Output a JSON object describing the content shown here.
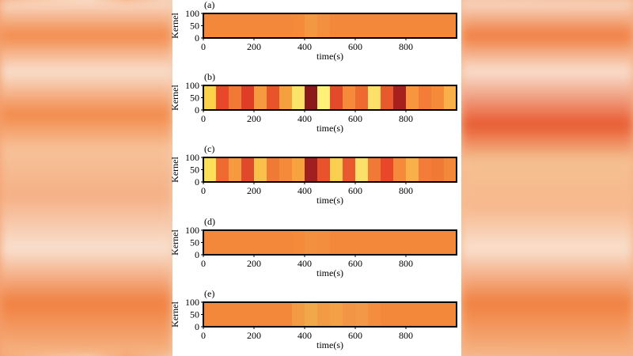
{
  "chart_data": [
    {
      "type": "heatmap",
      "title": "(a)",
      "xlabel": "time(s)",
      "ylabel": "Kernel",
      "xlim": [
        0,
        1000
      ],
      "ylim": [
        0,
        100
      ],
      "xticks": [
        0,
        200,
        400,
        600,
        800
      ],
      "yticks": [
        0,
        50,
        100
      ],
      "bins": [
        0,
        50,
        100,
        150,
        200,
        250,
        300,
        350,
        400,
        450,
        500,
        550,
        600,
        650,
        700,
        750,
        800,
        850,
        900,
        950,
        1000
      ],
      "colors": [
        "#f4883a",
        "#f4883a",
        "#f4883a",
        "#f4883a",
        "#f4883a",
        "#f4883a",
        "#f4883a",
        "#f48a3a",
        "#f29842",
        "#f29040",
        "#f4883a",
        "#f4883a",
        "#f4883a",
        "#f4883a",
        "#f4883a",
        "#f4883a",
        "#f4883a",
        "#f4883a",
        "#f4883a",
        "#f4883a"
      ]
    },
    {
      "type": "heatmap",
      "title": "(b)",
      "xlabel": "time(s)",
      "ylabel": "Kernel",
      "xlim": [
        0,
        1000
      ],
      "ylim": [
        0,
        100
      ],
      "xticks": [
        0,
        200,
        400,
        600,
        800
      ],
      "yticks": [
        0,
        50,
        100
      ],
      "bins": [
        0,
        50,
        100,
        150,
        200,
        250,
        300,
        350,
        400,
        450,
        500,
        550,
        600,
        650,
        700,
        750,
        800,
        850,
        900,
        950,
        1000
      ],
      "colors": [
        "#fbd24a",
        "#e8472a",
        "#f07a35",
        "#e03d28",
        "#f59a3e",
        "#e8532c",
        "#f4a03f",
        "#fbe36a",
        "#8a1a1a",
        "#fff07a",
        "#e24a2b",
        "#f48a3a",
        "#ee6a30",
        "#fde06a",
        "#e85a2e",
        "#a8201e",
        "#f7963d",
        "#f27c38",
        "#f48a3a",
        "#f9b04a"
      ]
    },
    {
      "type": "heatmap",
      "title": "(c)",
      "xlabel": "time(s)",
      "ylabel": "Kernel",
      "xlim": [
        0,
        1000
      ],
      "ylim": [
        0,
        100
      ],
      "xticks": [
        0,
        200,
        400,
        600,
        800
      ],
      "yticks": [
        0,
        50,
        100
      ],
      "bins": [
        0,
        50,
        100,
        150,
        200,
        250,
        300,
        350,
        400,
        450,
        500,
        550,
        600,
        650,
        700,
        750,
        800,
        850,
        900,
        950,
        1000
      ],
      "colors": [
        "#fce05a",
        "#ee6a30",
        "#f59a3e",
        "#e04a2a",
        "#f9c04a",
        "#f07a35",
        "#f48a3a",
        "#f6a23f",
        "#a02020",
        "#e8532c",
        "#fbd050",
        "#e85a2e",
        "#fde06a",
        "#f07a35",
        "#e8472a",
        "#f48a3a",
        "#f9b04a",
        "#f27c38",
        "#f07a35",
        "#f4883a"
      ]
    },
    {
      "type": "heatmap",
      "title": "(d)",
      "xlabel": "time(s)",
      "ylabel": "Kernel",
      "xlim": [
        0,
        1000
      ],
      "ylim": [
        0,
        100
      ],
      "xticks": [
        0,
        200,
        400,
        600,
        800
      ],
      "yticks": [
        0,
        50,
        100
      ],
      "bins": [
        0,
        50,
        100,
        150,
        200,
        250,
        300,
        350,
        400,
        450,
        500,
        550,
        600,
        650,
        700,
        750,
        800,
        850,
        900,
        950,
        1000
      ],
      "colors": [
        "#f4883a",
        "#f4883a",
        "#f4883a",
        "#f4883a",
        "#f4883a",
        "#f4883a",
        "#f4883a",
        "#f48a3a",
        "#f29040",
        "#f28e3e",
        "#f4883a",
        "#f4883a",
        "#f4883a",
        "#f4883a",
        "#f4883a",
        "#f4883a",
        "#f4883a",
        "#f4883a",
        "#f4883a",
        "#f4883a"
      ]
    },
    {
      "type": "heatmap",
      "title": "(e)",
      "xlabel": "time(s)",
      "ylabel": "Kernel",
      "xlim": [
        0,
        1000
      ],
      "ylim": [
        0,
        100
      ],
      "xticks": [
        0,
        200,
        400,
        600,
        800
      ],
      "yticks": [
        0,
        50,
        100
      ],
      "bins": [
        0,
        50,
        100,
        150,
        200,
        250,
        300,
        350,
        400,
        450,
        500,
        550,
        600,
        650,
        700,
        750,
        800,
        850,
        900,
        950,
        1000
      ],
      "colors": [
        "#f4883a",
        "#f4883a",
        "#f4883a",
        "#f4883a",
        "#f4883a",
        "#f4883a",
        "#f4883a",
        "#f29a44",
        "#f0a848",
        "#f29a44",
        "#f3a046",
        "#f29544",
        "#f39846",
        "#f48e3e",
        "#f4883a",
        "#f4883a",
        "#f4883a",
        "#f4883a",
        "#f4883a",
        "#f4883a"
      ]
    }
  ]
}
